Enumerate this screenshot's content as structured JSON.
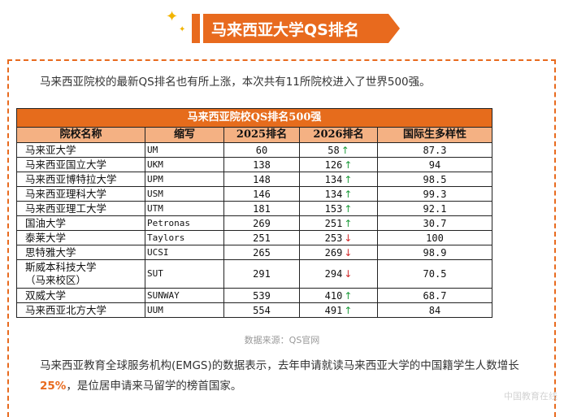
{
  "header": {
    "title": "马来西亚大学QS排名"
  },
  "intro_text": "马来西亚院校的最新QS排名也有所上涨，本次共有11所院校进入了世界500强。",
  "table": {
    "caption": "马来西亚院校QS排名500强",
    "columns": [
      "院校名称",
      "缩写",
      "2025排名",
      "2026排名",
      "国际生多样性"
    ],
    "rows": [
      {
        "name": "马来亚大学",
        "abbr": "UM",
        "rank2025": "60",
        "rank2026": "58",
        "trend": "up",
        "diversity": "87.3"
      },
      {
        "name": "马来西亚国立大学",
        "abbr": "UKM",
        "rank2025": "138",
        "rank2026": "126",
        "trend": "up",
        "diversity": "94"
      },
      {
        "name": "马来西亚博特拉大学",
        "abbr": "UPM",
        "rank2025": "148",
        "rank2026": "134",
        "trend": "up",
        "diversity": "98.5"
      },
      {
        "name": "马来西亚理科大学",
        "abbr": "USM",
        "rank2025": "146",
        "rank2026": "134",
        "trend": "up",
        "diversity": "99.3"
      },
      {
        "name": "马来西亚理工大学",
        "abbr": "UTM",
        "rank2025": "181",
        "rank2026": "153",
        "trend": "up",
        "diversity": "92.1"
      },
      {
        "name": "国油大学",
        "abbr": "Petronas",
        "rank2025": "269",
        "rank2026": "251",
        "trend": "up",
        "diversity": "30.7"
      },
      {
        "name": "泰莱大学",
        "abbr": "Taylors",
        "rank2025": "251",
        "rank2026": "253",
        "trend": "down",
        "diversity": "100"
      },
      {
        "name": "思特雅大学",
        "abbr": "UCSI",
        "rank2025": "265",
        "rank2026": "269",
        "trend": "down",
        "diversity": "98.9"
      },
      {
        "name": "斯威本科技大学",
        "name2": "（马来校区）",
        "abbr": "SUT",
        "rank2025": "291",
        "rank2026": "294",
        "trend": "down",
        "diversity": "70.5"
      },
      {
        "name": "双威大学",
        "abbr": "SUNWAY",
        "rank2025": "539",
        "rank2026": "410",
        "trend": "up",
        "diversity": "68.7"
      },
      {
        "name": "马来西亚北方大学",
        "abbr": "UUM",
        "rank2025": "554",
        "rank2026": "491",
        "trend": "up",
        "diversity": "84"
      }
    ]
  },
  "source_note": "数据来源：QS官网",
  "outro": {
    "before": "马来西亚教育全球服务机构(EMGS)的数据表示，去年申请就读马来西亚大学的中国籍学生人数增长",
    "highlight": "25%",
    "after": "，是位居申请来马留学的榜首国家。"
  },
  "watermark": "中国教育在线",
  "colors": {
    "accent": "#e86a1e",
    "header_row": "#f4b183",
    "arrow_up": "#1e9b3b",
    "arrow_down": "#d12a2a"
  },
  "icons": {
    "sparkle": "sparkle-icon",
    "up": "arrow-up-icon",
    "down": "arrow-down-icon"
  }
}
